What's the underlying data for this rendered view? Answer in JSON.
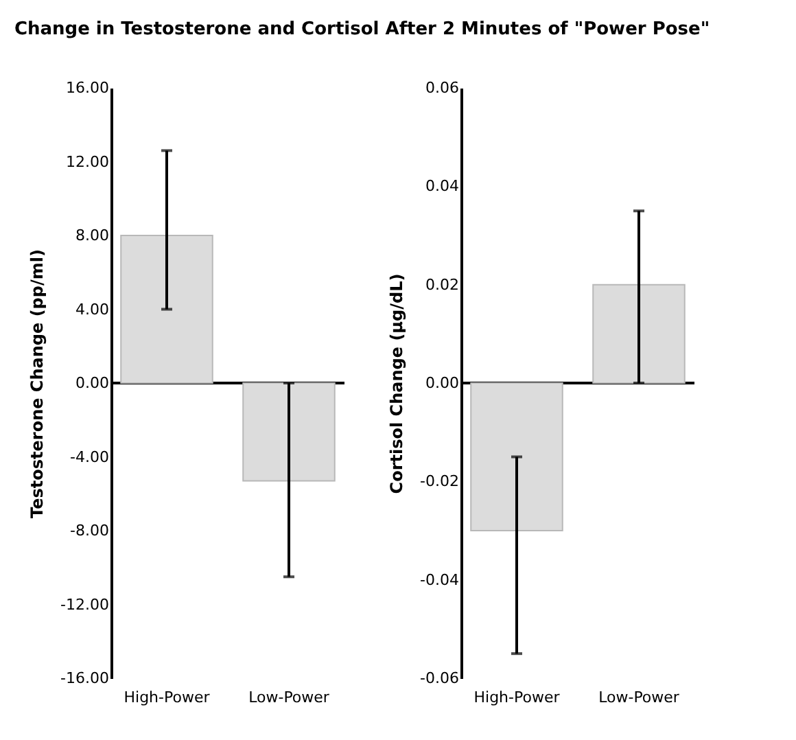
{
  "chart_data": [
    {
      "type": "bar",
      "title": "Change in Testosterone and Cortisol After 2 Minutes of \"Power Pose\"",
      "ylabel": "Testosterone Change (pp/ml)",
      "categories": [
        "High-Power",
        "Low-Power"
      ],
      "values": [
        8.0,
        -5.3
      ],
      "errors": [
        [
          4.0,
          12.6
        ],
        [
          -10.5,
          0.0
        ]
      ],
      "color": "#dcdcdc",
      "ylim": [
        -16,
        16
      ],
      "yticks": [
        {
          "value": 16,
          "label": "16.00"
        },
        {
          "value": 12,
          "label": "12.00"
        },
        {
          "value": 8,
          "label": "8.00"
        },
        {
          "value": 4,
          "label": "4.00"
        },
        {
          "value": 0,
          "label": "0.00"
        },
        {
          "value": -4,
          "label": "-4.00"
        },
        {
          "value": -8,
          "label": "-8.00"
        },
        {
          "value": -12,
          "label": "-12.00"
        },
        {
          "value": -16,
          "label": "-16.00"
        }
      ],
      "grid": false,
      "ref_lines": [
        {
          "axis": "y",
          "value": 0,
          "color": "#000000"
        }
      ]
    },
    {
      "type": "bar",
      "ylabel": "Cortisol Change (µg/dL)",
      "categories": [
        "High-Power",
        "Low-Power"
      ],
      "values": [
        -0.03,
        0.02
      ],
      "errors": [
        [
          -0.055,
          -0.015
        ],
        [
          0.0,
          0.035
        ]
      ],
      "color": "#dcdcdc",
      "ylim": [
        -0.06,
        0.06
      ],
      "yticks": [
        0.06,
        0.04,
        0.02,
        {
          "value": 0,
          "label": "0.00"
        },
        -0.02,
        -0.04,
        -0.06
      ],
      "grid": false,
      "ref_lines": [
        {
          "axis": "y",
          "value": 0,
          "color": "#000000"
        }
      ]
    }
  ]
}
